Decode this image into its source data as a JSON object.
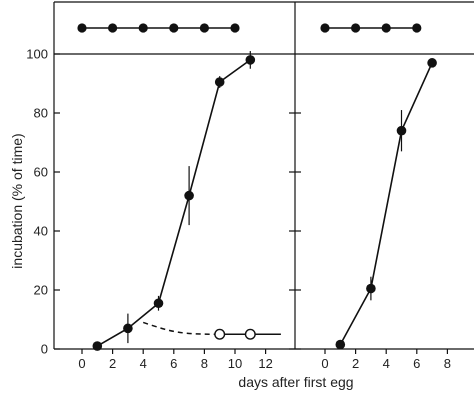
{
  "chart_data": [
    {
      "type": "line",
      "panel": "left",
      "xlabel": "",
      "ylabel": "incubation (% of time)",
      "xlim": [
        -1.6,
        13.8
      ],
      "ylim": [
        0,
        100
      ],
      "xticks": [
        "0",
        "2",
        "4",
        "6",
        "8",
        "10",
        "12"
      ],
      "yticks": [
        "0",
        "20",
        "40",
        "60",
        "80",
        "100"
      ],
      "series": [
        {
          "marker": "filled",
          "line": "solid",
          "x": [
            1,
            3,
            5,
            7,
            9,
            11
          ],
          "y": [
            1,
            7,
            15.5,
            52,
            90.5,
            98
          ],
          "error": [
            0,
            5,
            2.5,
            10,
            2,
            3
          ]
        },
        {
          "marker": "open",
          "line": "dashed",
          "x": [
            4,
            9,
            11
          ],
          "y": [
            9,
            5,
            5
          ],
          "error": [
            0,
            0,
            0
          ],
          "show_points": [
            false,
            true,
            true
          ],
          "line_tail_to": [
            13,
            5
          ]
        }
      ],
      "top_strip": {
        "x": [
          0,
          2,
          4,
          6,
          8,
          10
        ],
        "marker": "filled"
      }
    },
    {
      "type": "line",
      "panel": "right",
      "xlabel": "days after first egg",
      "ylabel": "",
      "xlim": [
        -1.6,
        9.4
      ],
      "ylim": [
        0,
        100
      ],
      "xticks": [
        "0",
        "2",
        "4",
        "6",
        "8"
      ],
      "yticks": [],
      "series": [
        {
          "marker": "filled",
          "line": "solid",
          "x": [
            1,
            3,
            5,
            7
          ],
          "y": [
            1.5,
            20.5,
            74,
            97
          ],
          "error": [
            0,
            4,
            7,
            0
          ]
        }
      ],
      "top_strip": {
        "x": [
          0,
          2,
          4,
          6
        ],
        "marker": "filled"
      }
    }
  ]
}
